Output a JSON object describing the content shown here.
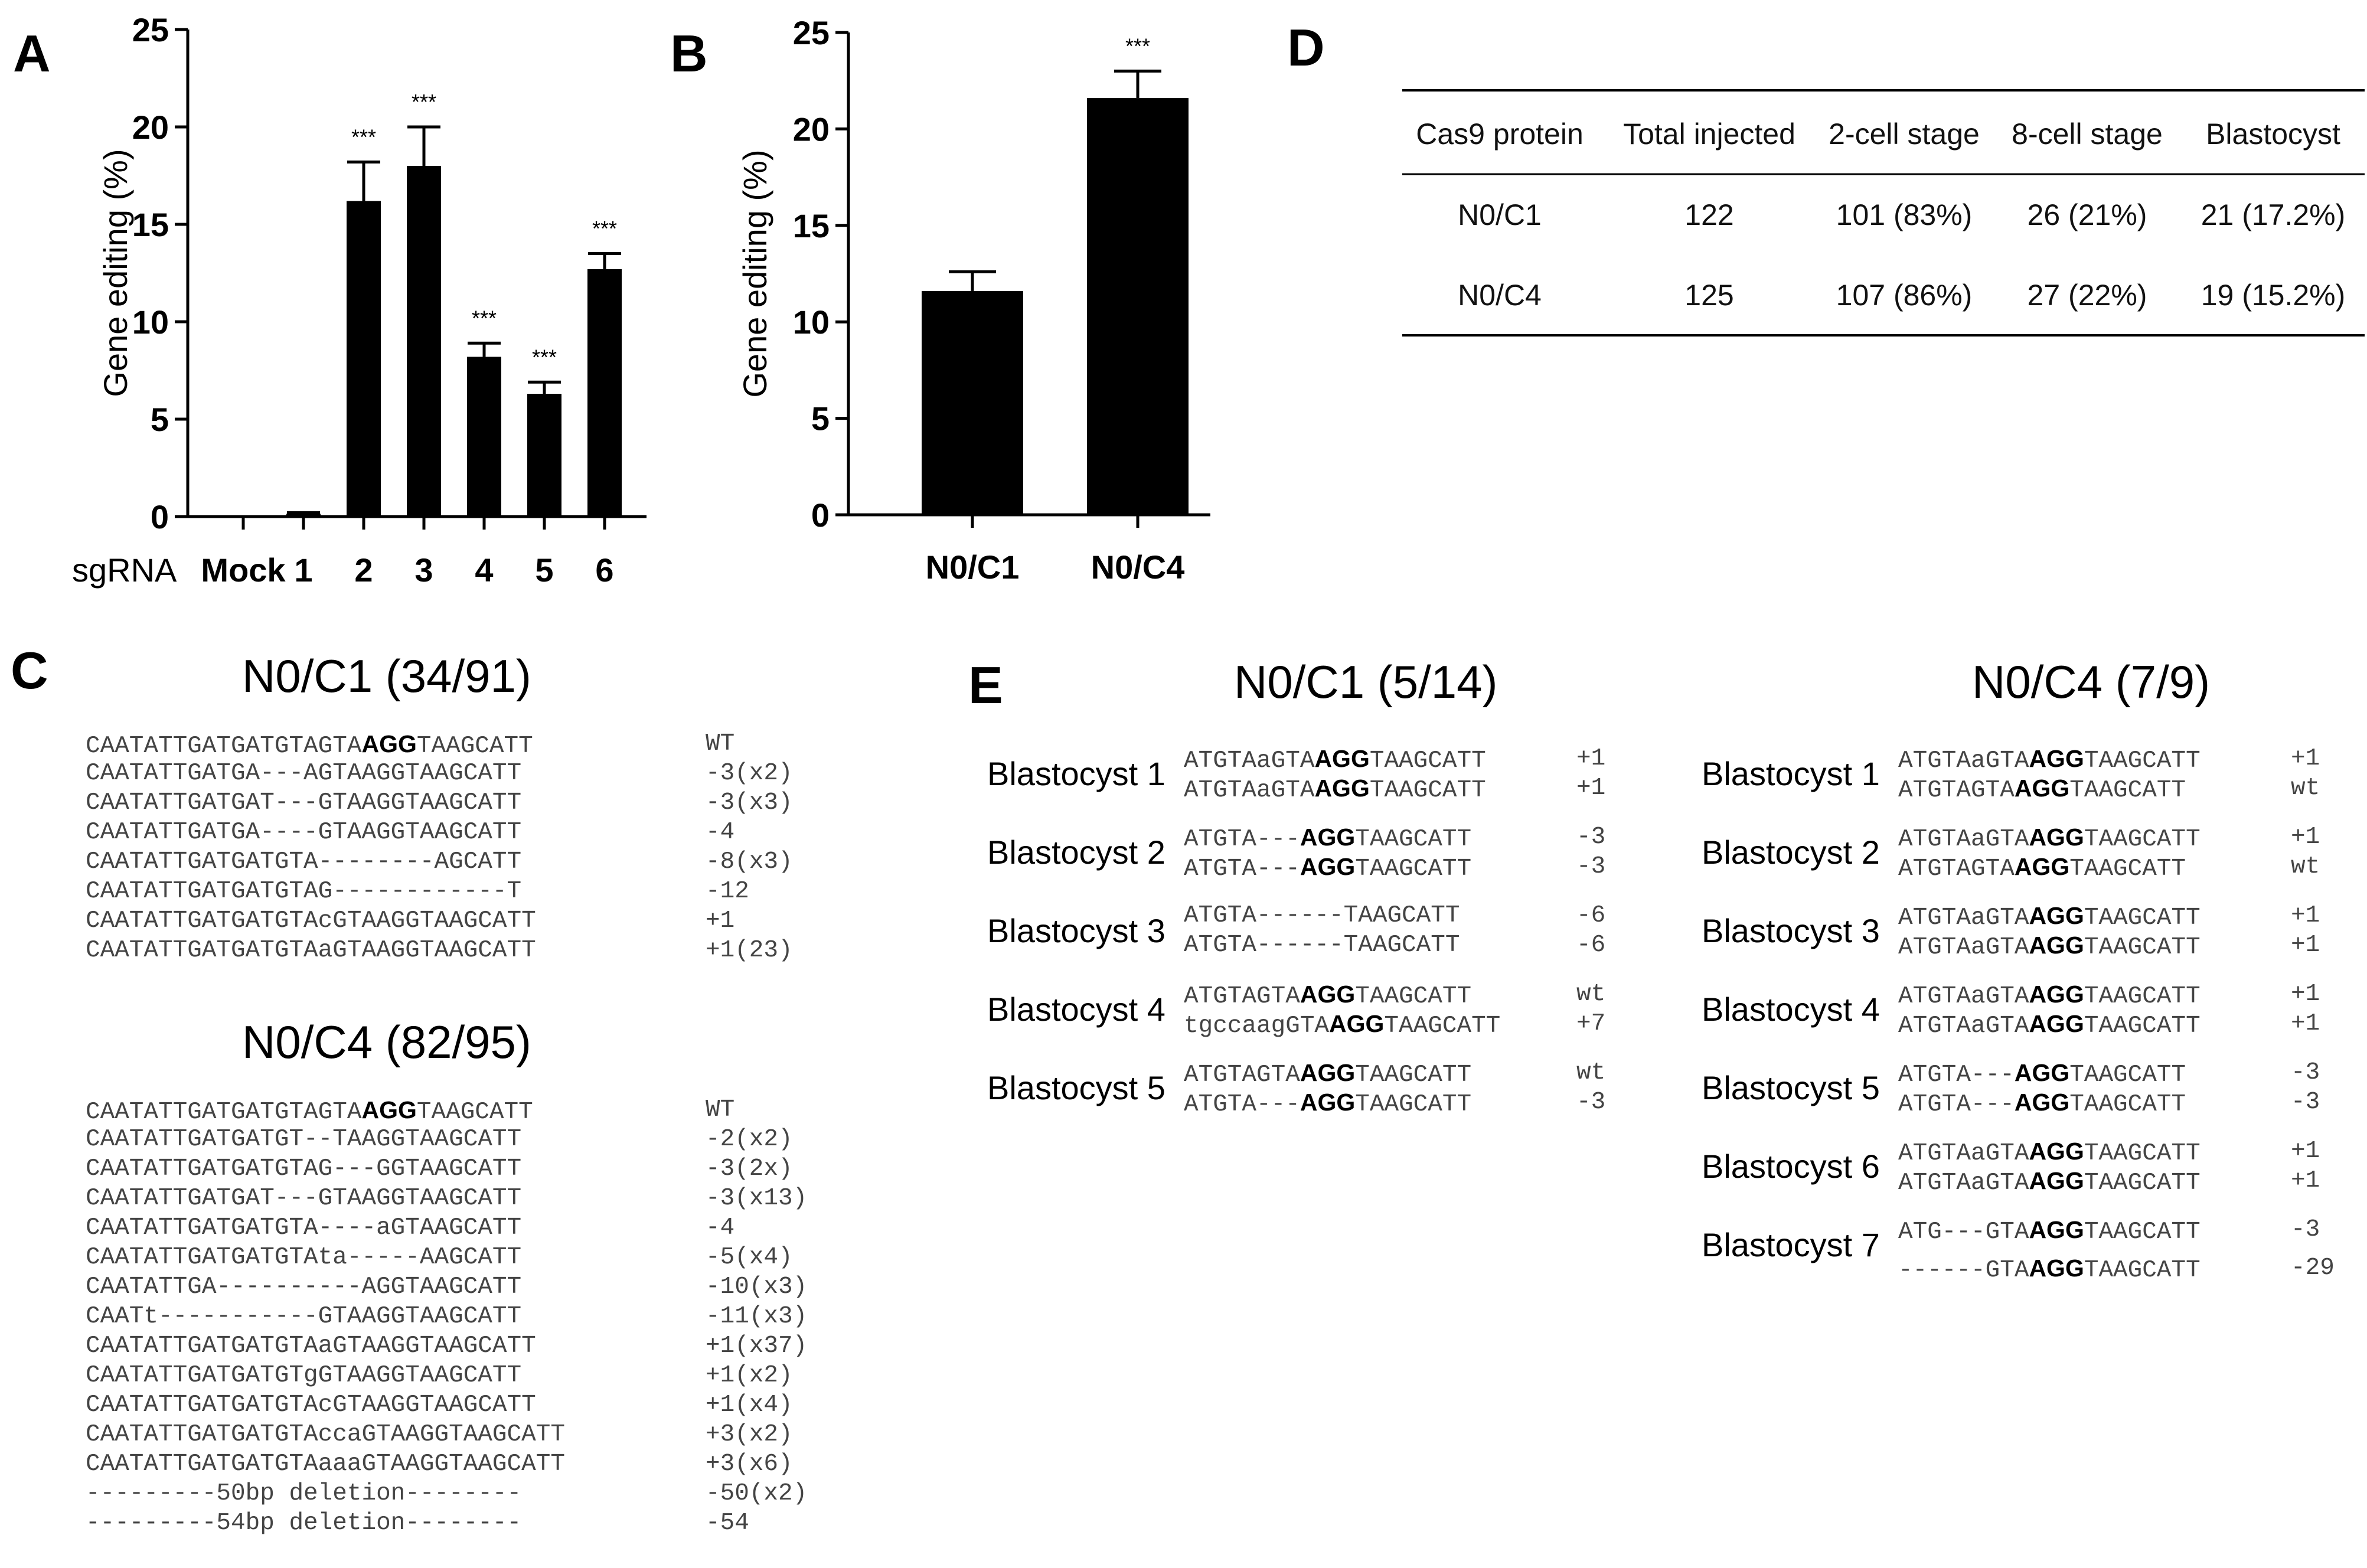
{
  "panel_letters": {
    "A": "A",
    "B": "B",
    "C": "C",
    "D": "D",
    "E": "E"
  },
  "chart_data": [
    {
      "type": "bar",
      "panel": "A",
      "ylabel": "Gene editing (%)",
      "xaxis_title": "sgRNA",
      "categories": [
        "Mock",
        "1",
        "2",
        "3",
        "4",
        "5",
        "6"
      ],
      "values": [
        0,
        0.15,
        16.2,
        18.0,
        8.2,
        6.3,
        12.7
      ],
      "errors": [
        0,
        0.05,
        2.0,
        2.0,
        0.7,
        0.6,
        0.8
      ],
      "significance": [
        "",
        "",
        "***",
        "***",
        "***",
        "***",
        "***"
      ],
      "ylim": [
        0,
        25
      ],
      "yticks": [
        "0",
        "5",
        "10",
        "15",
        "20",
        "25"
      ],
      "colors": {
        "bar": "#000000"
      }
    },
    {
      "type": "bar",
      "panel": "B",
      "ylabel": "Gene editing (%)",
      "categories": [
        "N0/C1",
        "N0/C4"
      ],
      "values": [
        11.6,
        21.6
      ],
      "errors": [
        1.0,
        1.4
      ],
      "significance": [
        "",
        "***"
      ],
      "ylim": [
        0,
        25
      ],
      "yticks": [
        "0",
        "5",
        "10",
        "15",
        "20",
        "25"
      ],
      "colors": {
        "bar": "#000000"
      }
    }
  ],
  "panel_d": {
    "headers": [
      "Cas9 protein",
      "Total injected",
      "2-cell stage",
      "8-cell stage",
      "Blastocyst"
    ],
    "rows": [
      [
        "N0/C1",
        "122",
        "101 (83%)",
        "26 (21%)",
        "21 (17.2%)"
      ],
      [
        "N0/C4",
        "125",
        "107 (86%)",
        "27 (22%)",
        "19 (15.2%)"
      ]
    ]
  },
  "panel_c": {
    "groups": [
      {
        "title": "N0/C1 (34/91)",
        "rows": [
          {
            "pre": "CAATATTGATGATGTAGTA",
            "bold": "AGG",
            "post": "TAAGCATT",
            "label": "WT"
          },
          {
            "pre": "CAATATTGATGA---AGTAAGGTAAGCATT",
            "bold": "",
            "post": "",
            "label": "-3(x2)"
          },
          {
            "pre": "CAATATTGATGAT---GTAAGGTAAGCATT",
            "bold": "",
            "post": "",
            "label": "-3(x3)"
          },
          {
            "pre": "CAATATTGATGA----GTAAGGTAAGCATT",
            "bold": "",
            "post": "",
            "label": "-4"
          },
          {
            "pre": "CAATATTGATGATGTA--------AGCATT",
            "bold": "",
            "post": "",
            "label": "-8(x3)"
          },
          {
            "pre": "CAATATTGATGATGTAG------------T",
            "bold": "",
            "post": "",
            "label": "-12"
          },
          {
            "pre": "CAATATTGATGATGTAcGTAAGGTAAGCATT",
            "bold": "",
            "post": "",
            "label": "+1"
          },
          {
            "pre": "CAATATTGATGATGTAaGTAAGGTAAGCATT",
            "bold": "",
            "post": "",
            "label": "+1(23)"
          }
        ]
      },
      {
        "title": "N0/C4 (82/95)",
        "rows": [
          {
            "pre": "CAATATTGATGATGTAGTA",
            "bold": "AGG",
            "post": "TAAGCATT",
            "label": "WT"
          },
          {
            "pre": "CAATATTGATGATGT--TAAGGTAAGCATT",
            "bold": "",
            "post": "",
            "label": "-2(x2)"
          },
          {
            "pre": "CAATATTGATGATGTAG---GGTAAGCATT",
            "bold": "",
            "post": "",
            "label": "-3(2x)"
          },
          {
            "pre": "CAATATTGATGAT---GTAAGGTAAGCATT",
            "bold": "",
            "post": "",
            "label": "-3(x13)"
          },
          {
            "pre": "CAATATTGATGATGTA----aGTAAGCATT",
            "bold": "",
            "post": "",
            "label": "-4"
          },
          {
            "pre": "CAATATTGATGATGTAta-----AAGCATT",
            "bold": "",
            "post": "",
            "label": "-5(x4)"
          },
          {
            "pre": "CAATATTGA----------AGGTAAGCATT",
            "bold": "",
            "post": "",
            "label": "-10(x3)"
          },
          {
            "pre": "CAATt-----------GTAAGGTAAGCATT",
            "bold": "",
            "post": "",
            "label": "-11(x3)"
          },
          {
            "pre": "CAATATTGATGATGTAaGTAAGGTAAGCATT",
            "bold": "",
            "post": "",
            "label": "+1(x37)"
          },
          {
            "pre": "CAATATTGATGATGTgGTAAGGTAAGCATT",
            "bold": "",
            "post": "",
            "label": "+1(x2)"
          },
          {
            "pre": "CAATATTGATGATGTAcGTAAGGTAAGCATT",
            "bold": "",
            "post": "",
            "label": "+1(x4)"
          },
          {
            "pre": "CAATATTGATGATGTAccaGTAAGGTAAGCATT",
            "bold": "",
            "post": "",
            "label": "+3(x2)"
          },
          {
            "pre": "CAATATTGATGATGTAaaaGTAAGGTAAGCATT",
            "bold": "",
            "post": "",
            "label": "+3(x6)"
          },
          {
            "pre": "---------50bp deletion--------",
            "bold": "",
            "post": "",
            "label": "-50(x2)"
          },
          {
            "pre": "---------54bp deletion--------",
            "bold": "",
            "post": "",
            "label": "-54"
          }
        ]
      }
    ]
  },
  "panel_e": {
    "groups": [
      {
        "title": "N0/C1 (5/14)",
        "blastocysts": [
          {
            "label": "Blastocyst 1",
            "alleles": [
              {
                "pre": "ATGTAaGTA",
                "bold": "AGG",
                "post": "TAAGCATT",
                "label": "+1"
              },
              {
                "pre": "ATGTAaGTA",
                "bold": "AGG",
                "post": "TAAGCATT",
                "label": "+1"
              }
            ]
          },
          {
            "label": "Blastocyst 2",
            "alleles": [
              {
                "pre": "ATGTA---",
                "bold": "AGG",
                "post": "TAAGCATT",
                "label": "-3"
              },
              {
                "pre": "ATGTA---",
                "bold": "AGG",
                "post": "TAAGCATT",
                "label": "-3"
              }
            ]
          },
          {
            "label": "Blastocyst 3",
            "alleles": [
              {
                "pre": "ATGTA------TAAGCATT",
                "bold": "",
                "post": "",
                "label": "-6"
              },
              {
                "pre": "ATGTA------TAAGCATT",
                "bold": "",
                "post": "",
                "label": "-6"
              }
            ]
          },
          {
            "label": "Blastocyst 4",
            "alleles": [
              {
                "pre": "ATGTAGTA",
                "bold": "AGG",
                "post": "TAAGCATT",
                "label": "wt"
              },
              {
                "pre": "tgccaagGTA",
                "bold": "AGG",
                "post": "TAAGCATT",
                "label": "+7"
              }
            ]
          },
          {
            "label": "Blastocyst 5",
            "alleles": [
              {
                "pre": "ATGTAGTA",
                "bold": "AGG",
                "post": "TAAGCATT",
                "label": "wt"
              },
              {
                "pre": "ATGTA---",
                "bold": "AGG",
                "post": "TAAGCATT",
                "label": "-3"
              }
            ]
          }
        ]
      },
      {
        "title": "N0/C4 (7/9)",
        "blastocysts": [
          {
            "label": "Blastocyst 1",
            "alleles": [
              {
                "pre": "ATGTAaGTA",
                "bold": "AGG",
                "post": "TAAGCATT",
                "label": "+1"
              },
              {
                "pre": "ATGTAGTA",
                "bold": "AGG",
                "post": "TAAGCATT",
                "label": "wt"
              }
            ]
          },
          {
            "label": "Blastocyst 2",
            "alleles": [
              {
                "pre": "ATGTAaGTA",
                "bold": "AGG",
                "post": "TAAGCATT",
                "label": "+1"
              },
              {
                "pre": "ATGTAGTA",
                "bold": "AGG",
                "post": "TAAGCATT",
                "label": "wt"
              }
            ]
          },
          {
            "label": "Blastocyst 3",
            "alleles": [
              {
                "pre": "ATGTAaGTA",
                "bold": "AGG",
                "post": "TAAGCATT",
                "label": "+1"
              },
              {
                "pre": "ATGTAaGTA",
                "bold": "AGG",
                "post": "TAAGCATT",
                "label": "+1"
              }
            ]
          },
          {
            "label": "Blastocyst 4",
            "alleles": [
              {
                "pre": "ATGTAaGTA",
                "bold": "AGG",
                "post": "TAAGCATT",
                "label": "+1"
              },
              {
                "pre": "ATGTAaGTA",
                "bold": "AGG",
                "post": "TAAGCATT",
                "label": "+1"
              }
            ]
          },
          {
            "label": "Blastocyst 5",
            "alleles": [
              {
                "pre": "ATGTA---",
                "bold": "AGG",
                "post": "TAAGCATT",
                "label": "-3"
              },
              {
                "pre": "ATGTA---",
                "bold": "AGG",
                "post": "TAAGCATT",
                "label": "-3"
              }
            ]
          },
          {
            "label": "Blastocyst 6",
            "alleles": [
              {
                "pre": "ATGTAaGTA",
                "bold": "AGG",
                "post": "TAAGCATT",
                "label": "+1"
              },
              {
                "pre": "ATGTAaGTA",
                "bold": "AGG",
                "post": "TAAGCATT",
                "label": "+1"
              }
            ]
          },
          {
            "label": "Blastocyst 7",
            "alleles": [
              {
                "pre": "ATG---GTA",
                "bold": "AGG",
                "post": "TAAGCATT",
                "label": "-3"
              },
              {
                "pre": "------GTA",
                "bold": "AGG",
                "post": "TAAGCATT",
                "label": "-29"
              }
            ]
          }
        ]
      }
    ]
  }
}
